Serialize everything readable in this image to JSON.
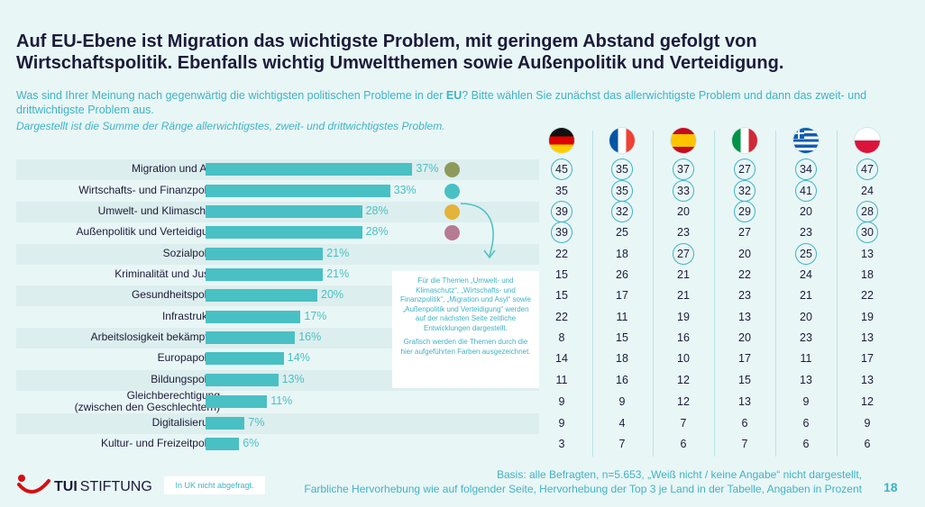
{
  "title": "Auf EU-Ebene ist Migration das wichtigste Problem, mit geringem Abstand gefolgt von Wirtschaftspolitik. Ebenfalls wichtig Umweltthemen sowie Außenpolitik und Verteidigung.",
  "question_part1": "Was sind Ihrer Meinung nach gegenwärtig die wichtigsten politischen Probleme in der ",
  "question_bold": "EU",
  "question_part2": "? Bitte wählen Sie zunächst das allerwichtigste Problem und dann das zweit- und drittwichtigste Problem aus.",
  "subnote": "Dargestellt ist die Summe der Ränge allerwichtigstes, zweit- und drittwichtigstes Problem.",
  "infobox": {
    "text1": "Für die Themen „Umwelt- und Klimaschutz“, „Wirtschafts- und Finanzpolitik“, „Migration und Asyl“ sowie „Außenpolitik und Verteidigung“ werden auf der nächsten Seite zeitliche Entwicklungen dargestellt.",
    "text2": "Grafisch werden die Themen durch die hier aufgeführten Farben ausgezeichnet."
  },
  "footer": {
    "logo_tui": "TUI",
    "logo_stiftung": "STIFTUNG",
    "uk_note": "In UK nicht abgefragt.",
    "basis_line1": "Basis: alle Befragten, n=5.653, „Weiß nicht / keine Angabe“ nicht dargestellt,",
    "basis_line2": "Farbliche Hervorhebung wie auf folgender Seite, Hervorhebung der Top 3 je Land in der Tabelle, Angaben in Prozent",
    "page": "18"
  },
  "colors": {
    "bar": "#49c0c4",
    "migration": "#8e9a5b",
    "wirtschaft": "#49c0c4",
    "umwelt": "#e2b43a",
    "aussen": "#b77a93"
  },
  "countries": [
    "germany-flag",
    "france-flag",
    "spain-flag",
    "italy-flag",
    "greece-flag",
    "poland-flag"
  ],
  "chart_data": {
    "type": "bar",
    "orientation": "horizontal",
    "categories": [
      "Migration und Asyl",
      "Wirtschafts- und Finanzpolitik",
      "Umwelt- und Klimaschutz",
      "Außenpolitik und Verteidigung",
      "Sozialpolitik",
      "Kriminalität und Justiz",
      "Gesundheitspolitik",
      "Infrastruktur",
      "Arbeitslosigkeit bekämpfen",
      "Europapolitik",
      "Bildungspolitik",
      "Gleichberechtigung (zwischen den Geschlechtern)",
      "Digitalisierung",
      "Kultur- und Freizeitpolitik"
    ],
    "values": [
      37,
      33,
      28,
      28,
      21,
      21,
      20,
      17,
      16,
      14,
      13,
      11,
      7,
      6
    ],
    "value_labels": [
      "37%",
      "33%",
      "28%",
      "28%",
      "21%",
      "21%",
      "20%",
      "17%",
      "16%",
      "14%",
      "13%",
      "11%",
      "7%",
      "6%"
    ],
    "highlight_colors": [
      "#8e9a5b",
      "#49c0c4",
      "#e2b43a",
      "#b77a93",
      null,
      null,
      null,
      null,
      null,
      null,
      null,
      null,
      null,
      null
    ],
    "table": [
      [
        45,
        35,
        37,
        27,
        34,
        47
      ],
      [
        35,
        35,
        33,
        32,
        41,
        24
      ],
      [
        39,
        32,
        20,
        29,
        20,
        28
      ],
      [
        39,
        25,
        23,
        27,
        23,
        30
      ],
      [
        22,
        18,
        27,
        20,
        25,
        13
      ],
      [
        15,
        26,
        21,
        22,
        24,
        18
      ],
      [
        15,
        17,
        21,
        23,
        21,
        22
      ],
      [
        22,
        11,
        19,
        13,
        20,
        19
      ],
      [
        8,
        15,
        16,
        20,
        23,
        13
      ],
      [
        14,
        18,
        10,
        17,
        11,
        17
      ],
      [
        11,
        16,
        12,
        15,
        13,
        13
      ],
      [
        9,
        9,
        12,
        13,
        9,
        12
      ],
      [
        9,
        4,
        7,
        6,
        6,
        9
      ],
      [
        3,
        7,
        6,
        7,
        6,
        6
      ]
    ],
    "table_top3": [
      [
        true,
        true,
        true,
        true,
        true,
        true
      ],
      [
        false,
        true,
        true,
        true,
        true,
        false
      ],
      [
        true,
        true,
        false,
        true,
        false,
        true
      ],
      [
        true,
        false,
        false,
        false,
        false,
        true
      ],
      [
        false,
        false,
        true,
        false,
        true,
        false
      ],
      [
        false,
        false,
        false,
        false,
        false,
        false
      ],
      [
        false,
        false,
        false,
        false,
        false,
        false
      ],
      [
        false,
        false,
        false,
        false,
        false,
        false
      ],
      [
        false,
        false,
        false,
        false,
        false,
        false
      ],
      [
        false,
        false,
        false,
        false,
        false,
        false
      ],
      [
        false,
        false,
        false,
        false,
        false,
        false
      ],
      [
        false,
        false,
        false,
        false,
        false,
        false
      ],
      [
        false,
        false,
        false,
        false,
        false,
        false
      ],
      [
        false,
        false,
        false,
        false,
        false,
        false
      ]
    ],
    "xlim": [
      0,
      100
    ]
  }
}
